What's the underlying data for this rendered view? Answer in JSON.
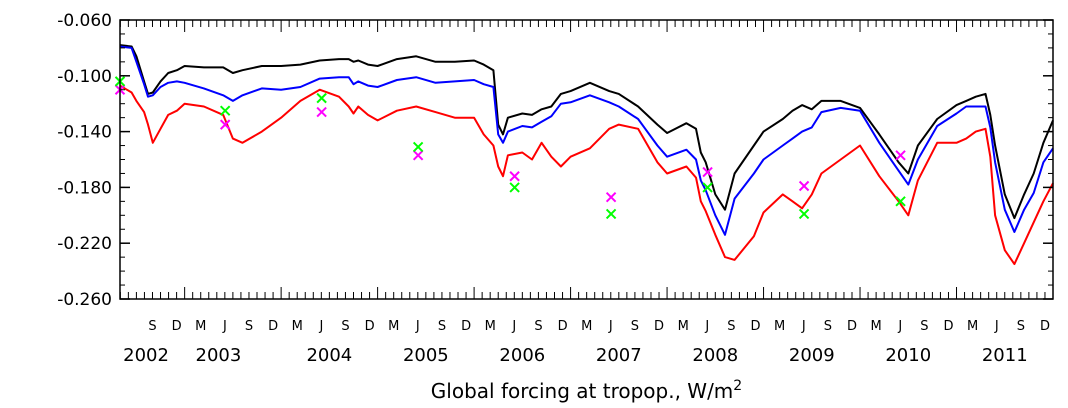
{
  "chart_data": {
    "type": "line",
    "title": "",
    "xlabel": "Global forcing at tropop., W/m",
    "xlabel_superscript": "2",
    "ylabel": "",
    "ylim": [
      -0.26,
      -0.06
    ],
    "xlim": [
      2002.33,
      2012.0
    ],
    "yticks": [
      -0.06,
      -0.1,
      -0.14,
      -0.18,
      -0.22,
      -0.26
    ],
    "ytick_labels": [
      "-0.060",
      "-0.100",
      "-0.140",
      "-0.180",
      "-0.220",
      "-0.260"
    ],
    "month_labels": [
      {
        "x": 2002.667,
        "label": "S"
      },
      {
        "x": 2002.917,
        "label": "D"
      },
      {
        "x": 2003.167,
        "label": "M"
      },
      {
        "x": 2003.417,
        "label": "J"
      },
      {
        "x": 2003.667,
        "label": "S"
      },
      {
        "x": 2003.917,
        "label": "D"
      },
      {
        "x": 2004.167,
        "label": "M"
      },
      {
        "x": 2004.417,
        "label": "J"
      },
      {
        "x": 2004.667,
        "label": "S"
      },
      {
        "x": 2004.917,
        "label": "D"
      },
      {
        "x": 2005.167,
        "label": "M"
      },
      {
        "x": 2005.417,
        "label": "J"
      },
      {
        "x": 2005.667,
        "label": "S"
      },
      {
        "x": 2005.917,
        "label": "D"
      },
      {
        "x": 2006.167,
        "label": "M"
      },
      {
        "x": 2006.417,
        "label": "J"
      },
      {
        "x": 2006.667,
        "label": "S"
      },
      {
        "x": 2006.917,
        "label": "D"
      },
      {
        "x": 2007.167,
        "label": "M"
      },
      {
        "x": 2007.417,
        "label": "J"
      },
      {
        "x": 2007.667,
        "label": "S"
      },
      {
        "x": 2007.917,
        "label": "D"
      },
      {
        "x": 2008.167,
        "label": "M"
      },
      {
        "x": 2008.417,
        "label": "J"
      },
      {
        "x": 2008.667,
        "label": "S"
      },
      {
        "x": 2008.917,
        "label": "D"
      },
      {
        "x": 2009.167,
        "label": "M"
      },
      {
        "x": 2009.417,
        "label": "J"
      },
      {
        "x": 2009.667,
        "label": "S"
      },
      {
        "x": 2009.917,
        "label": "D"
      },
      {
        "x": 2010.167,
        "label": "M"
      },
      {
        "x": 2010.417,
        "label": "J"
      },
      {
        "x": 2010.667,
        "label": "S"
      },
      {
        "x": 2010.917,
        "label": "D"
      },
      {
        "x": 2011.167,
        "label": "M"
      },
      {
        "x": 2011.417,
        "label": "J"
      },
      {
        "x": 2011.667,
        "label": "S"
      },
      {
        "x": 2011.917,
        "label": "D"
      }
    ],
    "year_labels": [
      {
        "x": 2002.6,
        "label": "2002"
      },
      {
        "x": 2003.35,
        "label": "2003"
      },
      {
        "x": 2004.5,
        "label": "2004"
      },
      {
        "x": 2005.5,
        "label": "2005"
      },
      {
        "x": 2006.5,
        "label": "2006"
      },
      {
        "x": 2007.5,
        "label": "2007"
      },
      {
        "x": 2008.5,
        "label": "2008"
      },
      {
        "x": 2009.5,
        "label": "2009"
      },
      {
        "x": 2010.5,
        "label": "2010"
      },
      {
        "x": 2011.5,
        "label": "2011"
      }
    ],
    "series": [
      {
        "color": "#000000",
        "x": [
          2002.33,
          2002.45,
          2002.5,
          2002.58,
          2002.62,
          2002.67,
          2002.75,
          2002.83,
          2002.92,
          2003.0,
          2003.2,
          2003.4,
          2003.5,
          2003.6,
          2003.8,
          2004.0,
          2004.2,
          2004.4,
          2004.6,
          2004.7,
          2004.75,
          2004.8,
          2004.9,
          2005.0,
          2005.2,
          2005.4,
          2005.6,
          2005.8,
          2006.0,
          2006.1,
          2006.2,
          2006.25,
          2006.3,
          2006.35,
          2006.5,
          2006.6,
          2006.7,
          2006.8,
          2006.9,
          2007.0,
          2007.2,
          2007.4,
          2007.5,
          2007.7,
          2007.9,
          2008.0,
          2008.2,
          2008.3,
          2008.35,
          2008.4,
          2008.5,
          2008.6,
          2008.7,
          2008.9,
          2009.0,
          2009.2,
          2009.3,
          2009.4,
          2009.5,
          2009.6,
          2009.8,
          2010.0,
          2010.2,
          2010.4,
          2010.5,
          2010.6,
          2010.8,
          2011.0,
          2011.1,
          2011.2,
          2011.3,
          2011.35,
          2011.4,
          2011.5,
          2011.6,
          2011.7,
          2011.8,
          2011.9,
          2012.0
        ],
        "y": [
          -0.078,
          -0.079,
          -0.086,
          -0.104,
          -0.113,
          -0.112,
          -0.104,
          -0.098,
          -0.096,
          -0.093,
          -0.094,
          -0.094,
          -0.098,
          -0.096,
          -0.093,
          -0.093,
          -0.092,
          -0.089,
          -0.088,
          -0.088,
          -0.09,
          -0.089,
          -0.092,
          -0.093,
          -0.088,
          -0.086,
          -0.09,
          -0.09,
          -0.089,
          -0.092,
          -0.096,
          -0.135,
          -0.142,
          -0.13,
          -0.127,
          -0.128,
          -0.124,
          -0.122,
          -0.113,
          -0.111,
          -0.105,
          -0.111,
          -0.113,
          -0.122,
          -0.135,
          -0.141,
          -0.134,
          -0.138,
          -0.155,
          -0.162,
          -0.185,
          -0.196,
          -0.17,
          -0.15,
          -0.14,
          -0.131,
          -0.125,
          -0.121,
          -0.124,
          -0.118,
          -0.118,
          -0.123,
          -0.142,
          -0.162,
          -0.17,
          -0.15,
          -0.131,
          -0.121,
          -0.118,
          -0.115,
          -0.113,
          -0.128,
          -0.15,
          -0.185,
          -0.202,
          -0.185,
          -0.17,
          -0.148,
          -0.132
        ]
      },
      {
        "color": "#0000ff",
        "x": [
          2002.33,
          2002.45,
          2002.5,
          2002.58,
          2002.62,
          2002.67,
          2002.75,
          2002.83,
          2002.92,
          2003.0,
          2003.2,
          2003.4,
          2003.5,
          2003.6,
          2003.8,
          2004.0,
          2004.2,
          2004.4,
          2004.6,
          2004.7,
          2004.75,
          2004.8,
          2004.9,
          2005.0,
          2005.2,
          2005.4,
          2005.6,
          2005.8,
          2006.0,
          2006.1,
          2006.2,
          2006.25,
          2006.3,
          2006.35,
          2006.5,
          2006.6,
          2006.7,
          2006.8,
          2006.9,
          2007.0,
          2007.2,
          2007.4,
          2007.5,
          2007.7,
          2007.9,
          2008.0,
          2008.2,
          2008.3,
          2008.35,
          2008.4,
          2008.5,
          2008.6,
          2008.7,
          2008.9,
          2009.0,
          2009.2,
          2009.3,
          2009.4,
          2009.5,
          2009.6,
          2009.8,
          2010.0,
          2010.2,
          2010.4,
          2010.5,
          2010.6,
          2010.8,
          2011.0,
          2011.1,
          2011.2,
          2011.3,
          2011.35,
          2011.4,
          2011.5,
          2011.6,
          2011.7,
          2011.8,
          2011.9,
          2012.0
        ],
        "y": [
          -0.079,
          -0.08,
          -0.09,
          -0.106,
          -0.115,
          -0.114,
          -0.108,
          -0.105,
          -0.104,
          -0.105,
          -0.109,
          -0.114,
          -0.118,
          -0.114,
          -0.109,
          -0.11,
          -0.108,
          -0.102,
          -0.101,
          -0.101,
          -0.106,
          -0.104,
          -0.107,
          -0.108,
          -0.103,
          -0.101,
          -0.105,
          -0.104,
          -0.103,
          -0.106,
          -0.108,
          -0.142,
          -0.148,
          -0.14,
          -0.136,
          -0.137,
          -0.133,
          -0.129,
          -0.12,
          -0.119,
          -0.114,
          -0.119,
          -0.122,
          -0.131,
          -0.15,
          -0.158,
          -0.153,
          -0.16,
          -0.175,
          -0.182,
          -0.2,
          -0.214,
          -0.188,
          -0.17,
          -0.16,
          -0.15,
          -0.145,
          -0.14,
          -0.137,
          -0.126,
          -0.123,
          -0.125,
          -0.148,
          -0.168,
          -0.178,
          -0.16,
          -0.136,
          -0.127,
          -0.122,
          -0.122,
          -0.122,
          -0.137,
          -0.162,
          -0.196,
          -0.212,
          -0.196,
          -0.184,
          -0.162,
          -0.152
        ]
      },
      {
        "color": "#ff0000",
        "x": [
          2002.33,
          2002.45,
          2002.5,
          2002.58,
          2002.62,
          2002.67,
          2002.75,
          2002.83,
          2002.92,
          2003.0,
          2003.2,
          2003.4,
          2003.5,
          2003.6,
          2003.8,
          2004.0,
          2004.2,
          2004.4,
          2004.6,
          2004.7,
          2004.75,
          2004.8,
          2004.9,
          2005.0,
          2005.2,
          2005.4,
          2005.6,
          2005.8,
          2006.0,
          2006.1,
          2006.2,
          2006.25,
          2006.3,
          2006.35,
          2006.5,
          2006.6,
          2006.7,
          2006.8,
          2006.9,
          2007.0,
          2007.2,
          2007.4,
          2007.5,
          2007.7,
          2007.9,
          2008.0,
          2008.2,
          2008.3,
          2008.35,
          2008.4,
          2008.5,
          2008.6,
          2008.7,
          2008.9,
          2009.0,
          2009.2,
          2009.3,
          2009.4,
          2009.5,
          2009.6,
          2009.8,
          2010.0,
          2010.2,
          2010.4,
          2010.5,
          2010.6,
          2010.8,
          2011.0,
          2011.1,
          2011.2,
          2011.3,
          2011.35,
          2011.4,
          2011.5,
          2011.6,
          2011.7,
          2011.8,
          2011.9,
          2012.0
        ],
        "y": [
          -0.107,
          -0.112,
          -0.118,
          -0.126,
          -0.135,
          -0.148,
          -0.138,
          -0.128,
          -0.125,
          -0.12,
          -0.122,
          -0.128,
          -0.145,
          -0.148,
          -0.14,
          -0.13,
          -0.118,
          -0.11,
          -0.115,
          -0.122,
          -0.127,
          -0.122,
          -0.128,
          -0.132,
          -0.125,
          -0.122,
          -0.126,
          -0.13,
          -0.13,
          -0.142,
          -0.15,
          -0.165,
          -0.172,
          -0.157,
          -0.155,
          -0.16,
          -0.148,
          -0.158,
          -0.165,
          -0.158,
          -0.152,
          -0.138,
          -0.135,
          -0.138,
          -0.162,
          -0.17,
          -0.165,
          -0.173,
          -0.19,
          -0.197,
          -0.214,
          -0.23,
          -0.232,
          -0.215,
          -0.198,
          -0.185,
          -0.19,
          -0.195,
          -0.185,
          -0.17,
          -0.16,
          -0.15,
          -0.172,
          -0.19,
          -0.2,
          -0.175,
          -0.148,
          -0.148,
          -0.145,
          -0.14,
          -0.138,
          -0.158,
          -0.2,
          -0.225,
          -0.235,
          -0.22,
          -0.205,
          -0.19,
          -0.177
        ]
      },
      {
        "color": "#ff00ff",
        "marker": "x",
        "x": [
          2002.33,
          2003.42,
          2004.42,
          2005.42,
          2006.42,
          2007.42,
          2008.42,
          2009.42,
          2010.42
        ],
        "y": [
          -0.11,
          -0.135,
          -0.126,
          -0.157,
          -0.172,
          -0.187,
          -0.169,
          -0.179,
          -0.157
        ]
      },
      {
        "color": "#00ff00",
        "marker": "x",
        "x": [
          2002.33,
          2003.42,
          2004.42,
          2005.42,
          2006.42,
          2007.42,
          2008.42,
          2009.42,
          2010.42
        ],
        "y": [
          -0.104,
          -0.125,
          -0.116,
          -0.151,
          -0.18,
          -0.199,
          -0.18,
          -0.199,
          -0.19
        ]
      }
    ],
    "grid": false,
    "legend": "none"
  }
}
